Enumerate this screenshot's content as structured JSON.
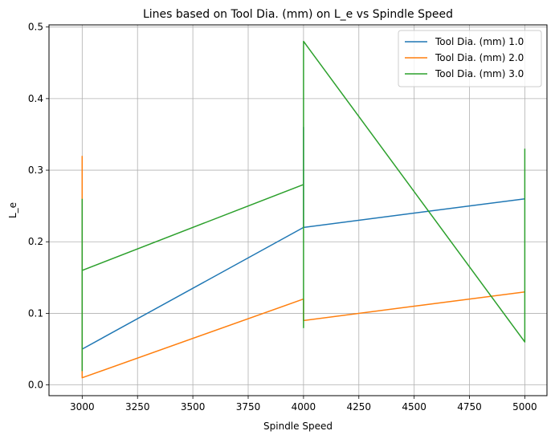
{
  "chart_data": {
    "type": "line",
    "title": "Lines based on Tool Dia. (mm) on L_e vs Spindle Speed",
    "xlabel": "Spindle Speed",
    "ylabel": "L_e",
    "xlim": [
      2850,
      5100
    ],
    "ylim": [
      -0.015,
      0.503
    ],
    "xticks": [
      3000,
      3250,
      3500,
      3750,
      4000,
      4250,
      4500,
      4750,
      5000
    ],
    "xtick_labels": [
      "3000",
      "3250",
      "3500",
      "3750",
      "4000",
      "4250",
      "4500",
      "4750",
      "5000"
    ],
    "yticks": [
      0.0,
      0.1,
      0.2,
      0.3,
      0.4,
      0.5
    ],
    "ytick_labels": [
      "0.0",
      "0.1",
      "0.2",
      "0.3",
      "0.4",
      "0.5"
    ],
    "grid": true,
    "legend_position": "top-right",
    "series": [
      {
        "name": "Tool Dia. (mm) 1.0",
        "color": "#1f77b4",
        "x": [
          3000,
          3000,
          3000,
          4000,
          4000,
          4000,
          5000,
          5000
        ],
        "y": [
          0.05,
          0.05,
          0.05,
          0.22,
          0.36,
          0.22,
          0.26,
          0.26
        ]
      },
      {
        "name": "Tool Dia. (mm) 2.0",
        "color": "#ff7f0e",
        "x": [
          3000,
          3000,
          3000,
          4000,
          4000,
          4000,
          5000,
          5000
        ],
        "y": [
          0.32,
          0.01,
          0.01,
          0.12,
          0.12,
          0.09,
          0.13,
          0.13
        ]
      },
      {
        "name": "Tool Dia. (mm) 3.0",
        "color": "#2ca02c",
        "x": [
          3000,
          3000,
          3000,
          4000,
          4000,
          4000,
          5000,
          5000
        ],
        "y": [
          0.26,
          0.02,
          0.16,
          0.28,
          0.08,
          0.48,
          0.06,
          0.33
        ]
      }
    ]
  }
}
